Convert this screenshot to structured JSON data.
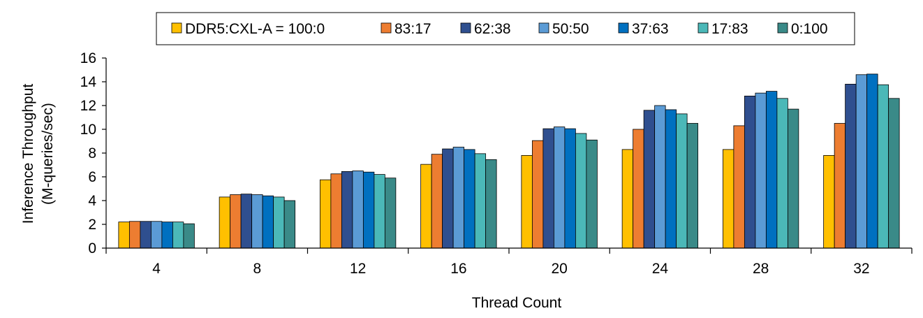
{
  "chart_data": {
    "type": "bar",
    "categories": [
      "4",
      "8",
      "12",
      "16",
      "20",
      "24",
      "28",
      "32"
    ],
    "xlabel": "Thread Count",
    "ylabel_lines": [
      "Inference Throughput",
      "(M-queries/sec)"
    ],
    "ylim": [
      0,
      16
    ],
    "yticks": [
      "0",
      "2",
      "4",
      "6",
      "8",
      "10",
      "12",
      "14",
      "16"
    ],
    "grid": false,
    "legend_position": "top",
    "series": [
      {
        "name": "DDR5:CXL-A = 100:0",
        "color": "#FFC000",
        "values": [
          2.2,
          4.3,
          5.75,
          7.05,
          7.8,
          8.3,
          8.3,
          7.8
        ]
      },
      {
        "name": "83:17",
        "color": "#ED7D31",
        "values": [
          2.25,
          4.5,
          6.25,
          7.9,
          9.05,
          10.0,
          10.3,
          10.5
        ]
      },
      {
        "name": "62:38",
        "color": "#2F4F8F",
        "values": [
          2.25,
          4.55,
          6.45,
          8.35,
          10.05,
          11.6,
          12.8,
          13.8
        ]
      },
      {
        "name": "50:50",
        "color": "#5B9BD5",
        "values": [
          2.25,
          4.5,
          6.5,
          8.5,
          10.2,
          12.0,
          13.05,
          14.6
        ]
      },
      {
        "name": "37:63",
        "color": "#0070C0",
        "values": [
          2.2,
          4.4,
          6.4,
          8.3,
          10.05,
          11.65,
          13.2,
          14.65
        ]
      },
      {
        "name": "17:83",
        "color": "#4BB8B8",
        "values": [
          2.2,
          4.3,
          6.2,
          7.95,
          9.65,
          11.3,
          12.6,
          13.75
        ]
      },
      {
        "name": "0:100",
        "color": "#3A8A88",
        "values": [
          2.05,
          4.0,
          5.9,
          7.45,
          9.1,
          10.5,
          11.7,
          12.6
        ]
      }
    ]
  }
}
